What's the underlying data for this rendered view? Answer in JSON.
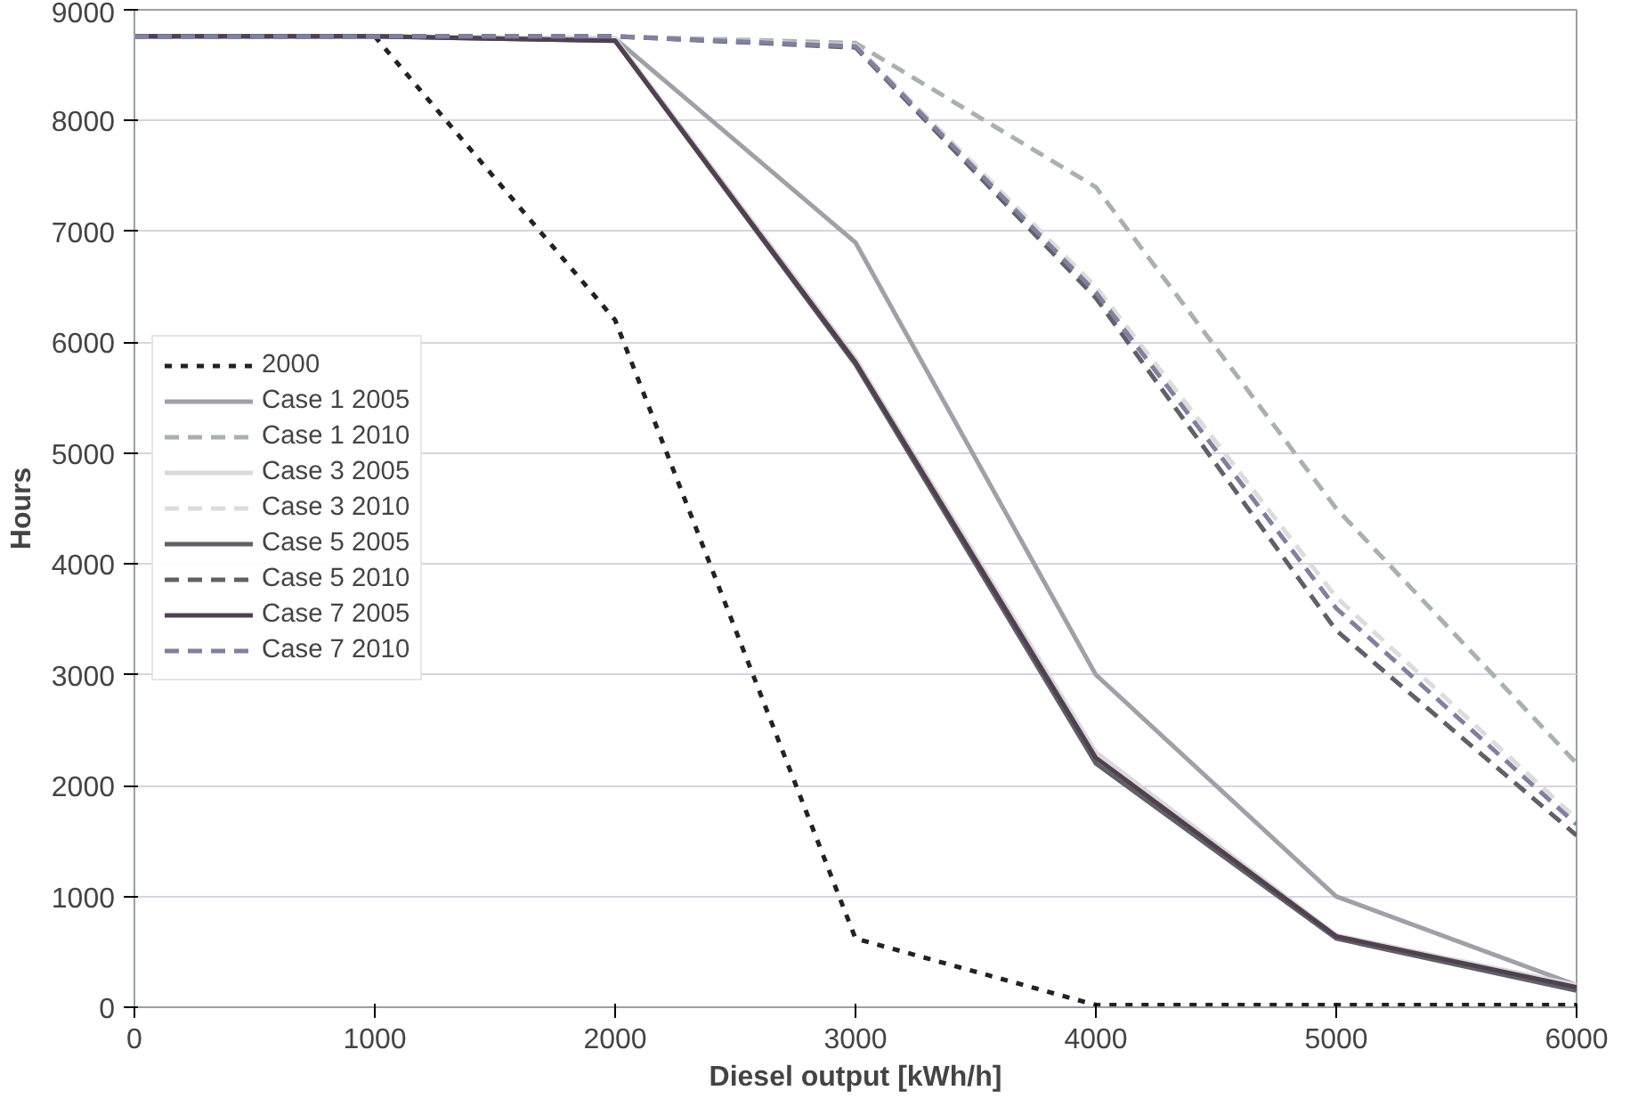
{
  "chart_data": {
    "type": "line",
    "xlabel": "Diesel output [kWh/h]",
    "ylabel": "Hours",
    "x": [
      0,
      1000,
      2000,
      3000,
      4000,
      5000,
      6000
    ],
    "xlim": [
      0,
      6000
    ],
    "xticks": [
      0,
      1000,
      2000,
      3000,
      4000,
      5000,
      6000
    ],
    "ylim": [
      0,
      9000
    ],
    "yticks": [
      0,
      1000,
      2000,
      3000,
      4000,
      5000,
      6000,
      7000,
      8000,
      9000
    ],
    "grid": "y",
    "legend": "left",
    "marker": "none",
    "series": [
      {
        "name": "2000",
        "color": "#222222",
        "line_style": "dotted",
        "values": [
          8760,
          8760,
          6200,
          620,
          20,
          20,
          20
        ]
      },
      {
        "name": "Case 1 2005",
        "color": "#a0a0a8",
        "line_style": "solid",
        "values": [
          8760,
          8760,
          8740,
          6900,
          3000,
          1000,
          200
        ]
      },
      {
        "name": "Case 1 2010",
        "color": "#a8b0b0",
        "line_style": "dashed",
        "values": [
          8760,
          8760,
          8760,
          8700,
          7400,
          4500,
          2200
        ]
      },
      {
        "name": "Case 3 2005",
        "color": "#dcd8dc",
        "line_style": "solid",
        "values": [
          8760,
          8760,
          8740,
          5850,
          2300,
          650,
          200
        ]
      },
      {
        "name": "Case 3 2010",
        "color": "#dcdcdc",
        "line_style": "dashed",
        "values": [
          8760,
          8760,
          8760,
          8680,
          6500,
          3700,
          1700
        ]
      },
      {
        "name": "Case 5 2005",
        "color": "#606068",
        "line_style": "solid",
        "values": [
          8760,
          8760,
          8720,
          5800,
          2200,
          620,
          150
        ]
      },
      {
        "name": "Case 5 2010",
        "color": "#606068",
        "line_style": "dashed",
        "values": [
          8760,
          8760,
          8760,
          8660,
          6400,
          3400,
          1550
        ]
      },
      {
        "name": "Case 7 2005",
        "color": "#504050",
        "line_style": "solid",
        "values": [
          8760,
          8760,
          8720,
          5820,
          2250,
          640,
          180
        ]
      },
      {
        "name": "Case 7 2010",
        "color": "#8080a0",
        "line_style": "dashed",
        "values": [
          8760,
          8760,
          8760,
          8670,
          6450,
          3600,
          1650
        ]
      }
    ]
  }
}
